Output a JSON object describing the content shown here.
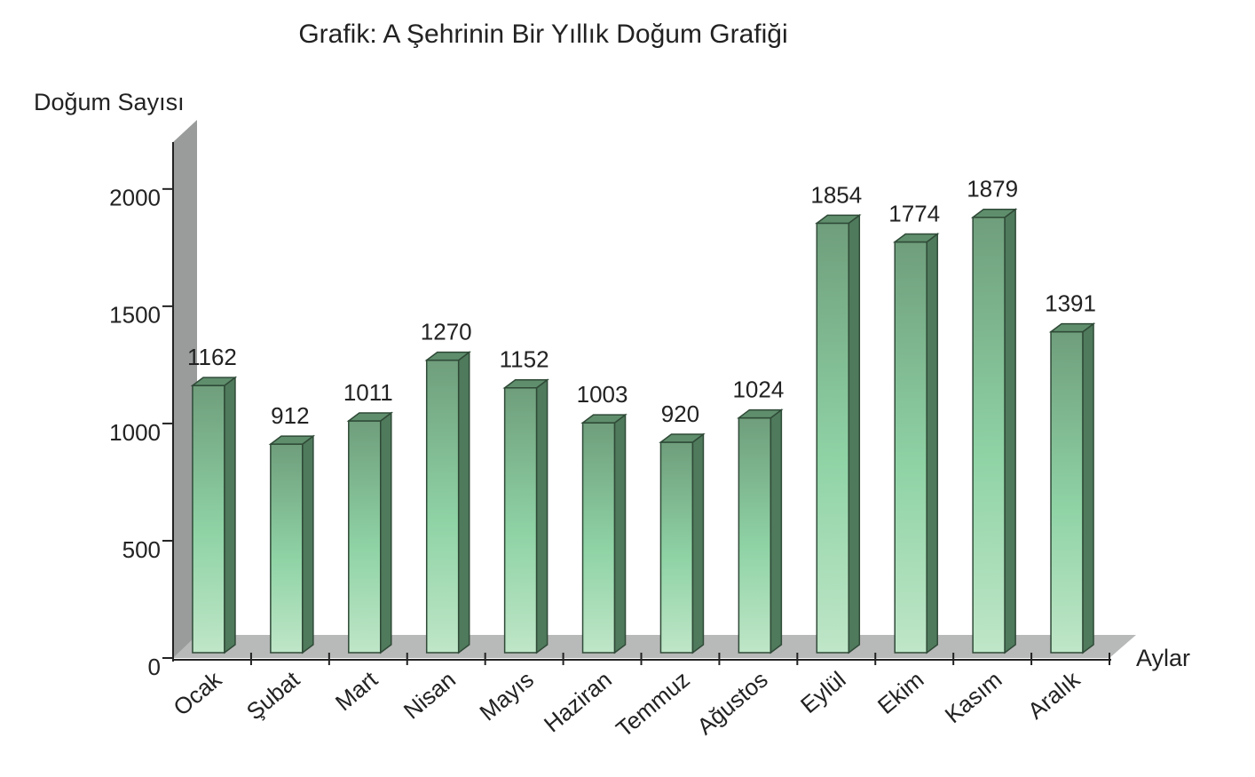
{
  "chart_data": {
    "type": "bar3d",
    "title": "Grafik: A Şehrinin Bir Yıllık Doğum Grafiği",
    "y_label": "Doğum Sayısı",
    "x_label": "Aylar",
    "categories": [
      "Ocak",
      "Şubat",
      "Mart",
      "Nisan",
      "Mayıs",
      "Haziran",
      "Temmuz",
      "Ağustos",
      "Eylül",
      "Ekim",
      "Kasım",
      "Aralık"
    ],
    "values": [
      1162,
      912,
      1011,
      1270,
      1152,
      1003,
      920,
      1024,
      1854,
      1774,
      1879,
      1391
    ],
    "color": "#7fbf95",
    "ylim": [
      0,
      2200
    ],
    "yticks": [
      0,
      500,
      1000,
      1500,
      2000
    ]
  }
}
